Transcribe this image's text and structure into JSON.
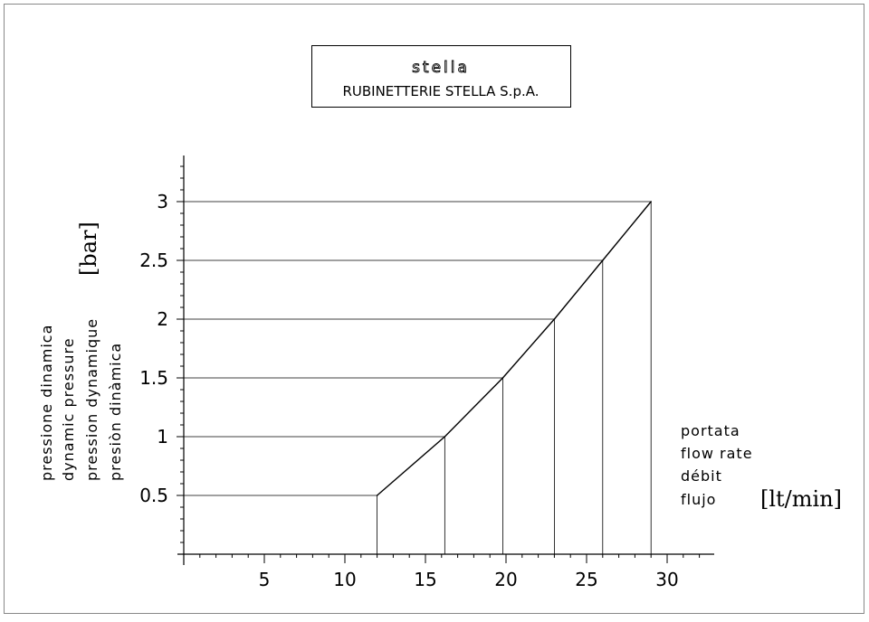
{
  "header": {
    "logo_text": "stella",
    "company": "RUBINETTERIE STELLA S.p.A."
  },
  "chart_data": {
    "type": "line",
    "x": [
      12,
      16.2,
      19.8,
      23,
      26,
      29
    ],
    "y": [
      0.5,
      1,
      1.5,
      2,
      2.5,
      3
    ],
    "xlim": [
      0,
      32
    ],
    "ylim": [
      0,
      3.3
    ],
    "xticks": [
      5,
      10,
      15,
      20,
      25,
      30
    ],
    "yticks": [
      0.5,
      1,
      1.5,
      2,
      2.5,
      3
    ],
    "xtick_labels": [
      "5",
      "10",
      "15",
      "20",
      "25",
      "30"
    ],
    "ytick_labels": [
      "0.5",
      "1",
      "1.5",
      "2",
      "2.5",
      "3"
    ],
    "ylabel_lines": [
      "pressione dinamica",
      "dynamic pressure",
      "pression dynamique",
      "presiòn dinàmica"
    ],
    "ylabel_unit": "[bar]",
    "xlabel_lines": [
      "portata",
      "flow rate",
      "débit",
      "flujo"
    ],
    "xlabel_unit": "[lt/min]",
    "grid": false,
    "drop_lines": true,
    "line_color": "#000000"
  }
}
